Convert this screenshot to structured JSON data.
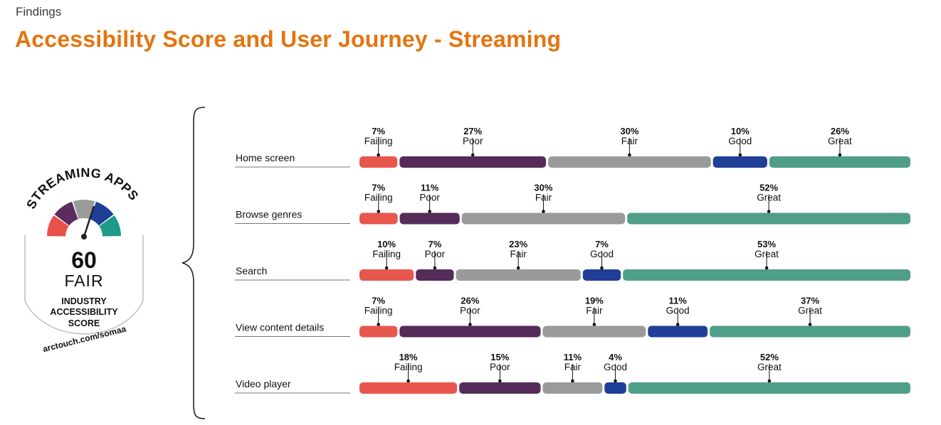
{
  "header": {
    "kicker": "Findings",
    "title": "Accessibility Score and User Journey - Streaming"
  },
  "badge": {
    "arc_text": "STREAMING APPS",
    "score": "60",
    "rating": "FAIR",
    "caption_lines": [
      "INDUSTRY",
      "ACCESSIBILITY",
      "SCORE"
    ],
    "url": "arctouch.com/somaa",
    "gauge_colors": [
      "#e8504a",
      "#5a2d5c",
      "#9b9b9b",
      "#1f3e96",
      "#1e9a88"
    ]
  },
  "chart_data": {
    "type": "bar",
    "stacked": true,
    "orientation": "horizontal",
    "colors": {
      "Failing": "#e8574e",
      "Poor": "#552b59",
      "Fair": "#9a9a9a",
      "Good": "#1f3e96",
      "Great": "#4f9e8a"
    },
    "rows": [
      {
        "label": "Home screen",
        "segments": [
          {
            "cat": "Failing",
            "value": 7
          },
          {
            "cat": "Poor",
            "value": 27
          },
          {
            "cat": "Fair",
            "value": 30
          },
          {
            "cat": "Good",
            "value": 10
          },
          {
            "cat": "Great",
            "value": 26
          }
        ]
      },
      {
        "label": "Browse genres",
        "segments": [
          {
            "cat": "Failing",
            "value": 7
          },
          {
            "cat": "Poor",
            "value": 11
          },
          {
            "cat": "Fair",
            "value": 30
          },
          {
            "cat": "Great",
            "value": 52
          }
        ]
      },
      {
        "label": "Search",
        "segments": [
          {
            "cat": "Failing",
            "value": 10
          },
          {
            "cat": "Poor",
            "value": 7
          },
          {
            "cat": "Fair",
            "value": 23
          },
          {
            "cat": "Good",
            "value": 7
          },
          {
            "cat": "Great",
            "value": 53
          }
        ]
      },
      {
        "label": "View content details",
        "segments": [
          {
            "cat": "Failing",
            "value": 7
          },
          {
            "cat": "Poor",
            "value": 26
          },
          {
            "cat": "Fair",
            "value": 19
          },
          {
            "cat": "Good",
            "value": 11
          },
          {
            "cat": "Great",
            "value": 37
          }
        ]
      },
      {
        "label": "Video player",
        "segments": [
          {
            "cat": "Failing",
            "value": 18
          },
          {
            "cat": "Poor",
            "value": 15
          },
          {
            "cat": "Fair",
            "value": 11
          },
          {
            "cat": "Good",
            "value": 4
          },
          {
            "cat": "Great",
            "value": 52
          }
        ]
      }
    ]
  }
}
